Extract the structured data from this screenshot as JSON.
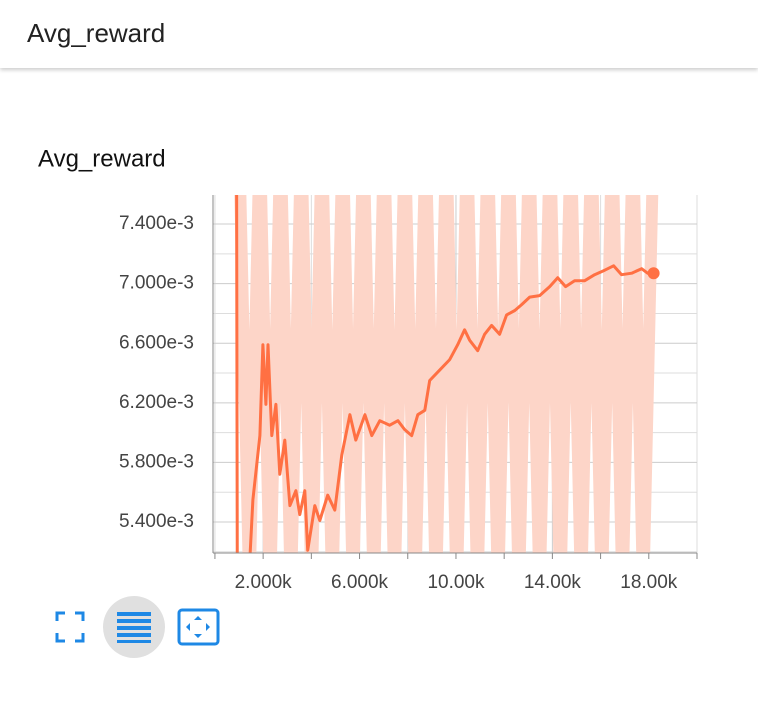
{
  "header": {
    "title": "Avg_reward"
  },
  "chart_data": {
    "type": "line",
    "title": "Avg_reward",
    "xlim": [
      -80,
      20000
    ],
    "ylim": [
      0.005192,
      0.007595
    ],
    "xticks": [
      {
        "value": 2000,
        "label": "2.000k"
      },
      {
        "value": 6000,
        "label": "6.000k"
      },
      {
        "value": 10000,
        "label": "10.00k"
      },
      {
        "value": 14000,
        "label": "14.00k"
      },
      {
        "value": 18000,
        "label": "18.00k"
      }
    ],
    "yticks": [
      {
        "value": 0.0054,
        "label": "5.400e-3"
      },
      {
        "value": 0.0058,
        "label": "5.800e-3"
      },
      {
        "value": 0.0062,
        "label": "6.200e-3"
      },
      {
        "value": 0.0066,
        "label": "6.600e-3"
      },
      {
        "value": 0.007,
        "label": "7.000e-3"
      },
      {
        "value": 0.0074,
        "label": "7.400e-3"
      }
    ],
    "grid": true,
    "series": [
      {
        "color": "#fdd5c8",
        "x": [
          1000,
          1430,
          1860,
          2290,
          2720,
          3150,
          3580,
          4010,
          4440,
          4870,
          5300,
          5730,
          6160,
          6590,
          7020,
          7450,
          7880,
          8310,
          8740,
          9170,
          9600,
          10030,
          10460,
          10890,
          11320,
          11750,
          12180,
          12610,
          13040,
          13470,
          13900,
          14330,
          14760,
          15190,
          15620,
          16050,
          16480,
          16910,
          17340,
          17770,
          18200
        ],
        "values": [
          0.008,
          0.0049,
          0.008,
          0.0049,
          0.008,
          0.0049,
          0.008,
          0.0049,
          0.008,
          0.0049,
          0.008,
          0.0049,
          0.008,
          0.0049,
          0.008,
          0.0049,
          0.008,
          0.0049,
          0.008,
          0.0049,
          0.008,
          0.0049,
          0.008,
          0.0049,
          0.008,
          0.0049,
          0.008,
          0.0049,
          0.008,
          0.0049,
          0.008,
          0.0049,
          0.008,
          0.0049,
          0.008,
          0.0049,
          0.008,
          0.0049,
          0.008,
          0.0049,
          0.008
        ]
      },
      {
        "color": "#ff7043",
        "x": [
          900,
          930,
          1400,
          1575,
          1865,
          1990,
          2115,
          2200,
          2360,
          2530,
          2690,
          2900,
          3110,
          3360,
          3520,
          3730,
          3850,
          4145,
          4350,
          4680,
          4975,
          5265,
          5600,
          5845,
          6220,
          6510,
          6840,
          7250,
          7590,
          7875,
          8165,
          8415,
          8705,
          8910,
          9325,
          9740,
          10070,
          10360,
          10570,
          10900,
          11190,
          11480,
          11810,
          12100,
          12440,
          12730,
          13060,
          13470,
          13890,
          14220,
          14550,
          14920,
          15340,
          15750,
          16170,
          16540,
          16870,
          17290,
          17700,
          17950,
          18200
        ],
        "values": [
          0.0077,
          0.005,
          0.005,
          0.00555,
          0.00598,
          0.00659,
          0.00619,
          0.00659,
          0.00598,
          0.00619,
          0.00572,
          0.00595,
          0.00551,
          0.00561,
          0.00545,
          0.00561,
          0.00521,
          0.00551,
          0.00541,
          0.00558,
          0.00548,
          0.00585,
          0.00612,
          0.00595,
          0.00612,
          0.00598,
          0.00608,
          0.00605,
          0.00608,
          0.00602,
          0.00598,
          0.00612,
          0.00615,
          0.00635,
          0.00642,
          0.00649,
          0.00659,
          0.00669,
          0.00662,
          0.00655,
          0.00666,
          0.00672,
          0.00666,
          0.00679,
          0.00682,
          0.00686,
          0.00691,
          0.00692,
          0.00698,
          0.00704,
          0.00698,
          0.00702,
          0.00702,
          0.00706,
          0.00709,
          0.00712,
          0.00706,
          0.00707,
          0.0071,
          0.00707,
          0.00707
        ]
      }
    ]
  }
}
